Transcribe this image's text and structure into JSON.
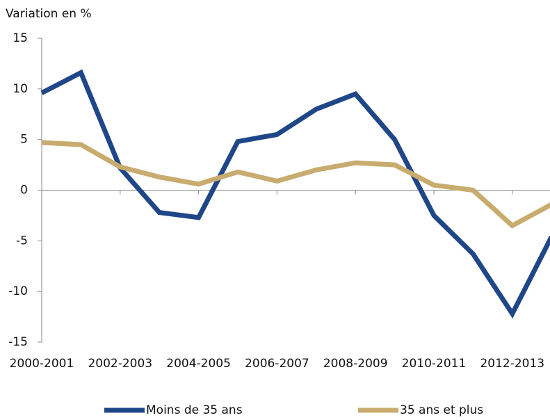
{
  "chart_data": {
    "type": "line",
    "title": "Variation en %",
    "categories": [
      "2000-2001",
      null,
      "2002-2003",
      null,
      "2004-2005",
      null,
      "2006-2007",
      null,
      "2008-2009",
      null,
      "2010-2011",
      null,
      "2012-2013",
      null
    ],
    "series": [
      {
        "name": "Moins de 35 ans",
        "color": "#1f4788",
        "values": [
          9.6,
          11.6,
          2.2,
          -2.2,
          -2.7,
          4.8,
          5.5,
          8.0,
          9.5,
          5.0,
          -2.5,
          -6.3,
          -12.2,
          -4.6
        ]
      },
      {
        "name": "35 ans et plus",
        "color": "#c8ab6e",
        "values": [
          4.7,
          4.5,
          2.3,
          1.3,
          0.6,
          1.8,
          0.9,
          2.0,
          2.7,
          2.5,
          0.5,
          0.0,
          -3.5,
          -1.4
        ]
      }
    ],
    "ylim": [
      -15,
      15
    ],
    "yticks": [
      -15,
      -10,
      -5,
      0,
      5,
      10,
      15
    ],
    "grid": false,
    "legend": "bottom"
  }
}
